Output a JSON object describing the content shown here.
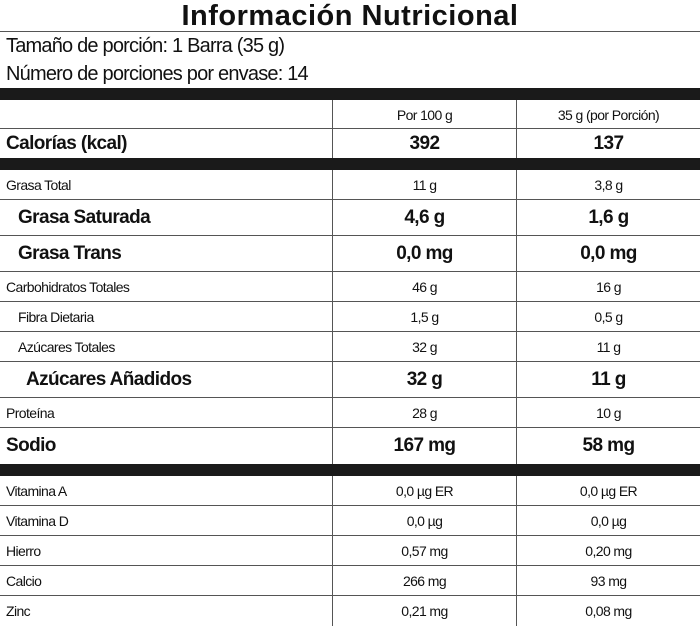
{
  "title": "Información Nutricional",
  "serving_size": "Tamaño de porción: 1 Barra (35 g)",
  "servings_per_container": "Número de porciones por envase: 14",
  "columns": [
    "Por 100 g",
    "35 g (por Porción)"
  ],
  "calories": {
    "label": "Calorías (kcal)",
    "per100": "392",
    "perServing": "137"
  },
  "nutrients": [
    {
      "label": "Grasa Total",
      "per100": "11 g",
      "perServing": "3,8 g",
      "style": "small",
      "indent": 0
    },
    {
      "label": "Grasa Saturada",
      "per100": "4,6 g",
      "perServing": "1,6 g",
      "style": "big",
      "indent": 1
    },
    {
      "label": "Grasa Trans",
      "per100": "0,0 mg",
      "perServing": "0,0 mg",
      "style": "big",
      "indent": 1
    },
    {
      "label": "Carbohidratos Totales",
      "per100": "46 g",
      "perServing": "16 g",
      "style": "small",
      "indent": 0
    },
    {
      "label": "Fibra Dietaria",
      "per100": "1,5 g",
      "perServing": "0,5 g",
      "style": "small",
      "indent": 1
    },
    {
      "label": "Azúcares Totales",
      "per100": "32 g",
      "perServing": "11 g",
      "style": "small",
      "indent": 1
    },
    {
      "label": "Azúcares Añadidos",
      "per100": "32 g",
      "perServing": "11 g",
      "style": "big",
      "indent": 2
    },
    {
      "label": "Proteína",
      "per100": "28 g",
      "perServing": "10 g",
      "style": "small",
      "indent": 0
    },
    {
      "label": "Sodio",
      "per100": "167 mg",
      "perServing": "58 mg",
      "style": "big",
      "indent": 0
    }
  ],
  "micronutrients": [
    {
      "label": "Vitamina A",
      "per100": "0,0 µg ER",
      "perServing": "0,0 µg ER"
    },
    {
      "label": "Vitamina D",
      "per100": "0,0 µg",
      "perServing": "0,0 µg"
    },
    {
      "label": "Hierro",
      "per100": "0,57 mg",
      "perServing": "0,20 mg"
    },
    {
      "label": "Calcio",
      "per100": "266 mg",
      "perServing": "93 mg"
    },
    {
      "label": "Zinc",
      "per100": "0,21 mg",
      "perServing": "0,08 mg"
    }
  ]
}
